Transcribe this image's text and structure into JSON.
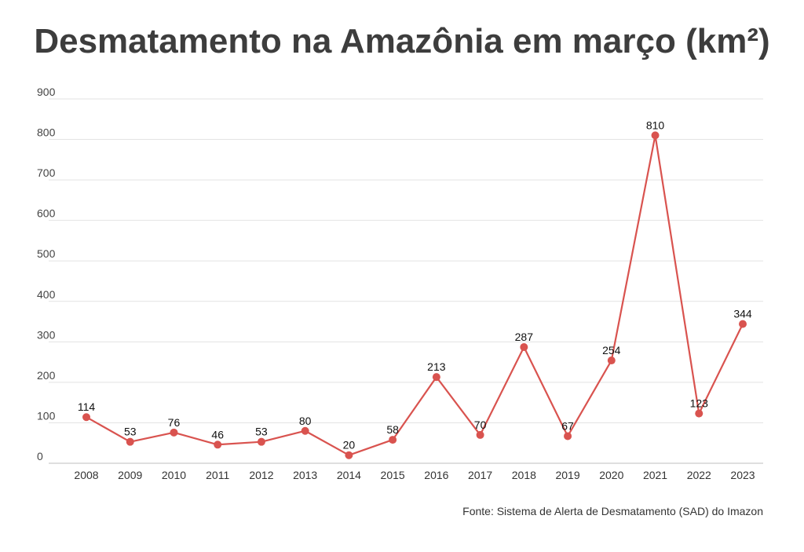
{
  "chart_data": {
    "type": "line",
    "title": "Desmatamento na Amazônia em março (km²)",
    "xlabel": "",
    "ylabel": "",
    "categories": [
      "2008",
      "2009",
      "2010",
      "2011",
      "2012",
      "2013",
      "2014",
      "2015",
      "2016",
      "2017",
      "2018",
      "2019",
      "2020",
      "2021",
      "2022",
      "2023"
    ],
    "series": [
      {
        "values": [
          114,
          53,
          76,
          46,
          53,
          80,
          20,
          58,
          213,
          70,
          287,
          67,
          254,
          810,
          123,
          344
        ]
      }
    ],
    "data_labels": [
      "114",
      "53",
      "76",
      "46",
      "53",
      "80",
      "20",
      "58",
      "213",
      "70",
      "287",
      "67",
      "254",
      "810",
      "123",
      "344"
    ],
    "yticks": [
      0,
      100,
      200,
      300,
      400,
      500,
      600,
      700,
      800,
      900
    ],
    "ylim": [
      0,
      900
    ],
    "grid": true,
    "legend": "none",
    "line_color": "#d9534f",
    "marker_color": "#d9534f",
    "source": "Fonte: Sistema de Alerta de Desmatamento (SAD) do Imazon"
  }
}
